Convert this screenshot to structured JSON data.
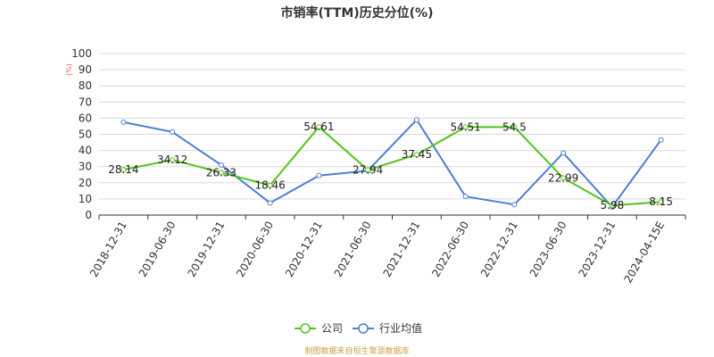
{
  "chart_data": {
    "type": "line",
    "title": "市销率(TTM)历史分位(%)",
    "ylabel": "(%)",
    "xlabel": "",
    "ylim": [
      0,
      100
    ],
    "yticks": [
      0,
      10,
      20,
      30,
      40,
      50,
      60,
      70,
      80,
      90,
      100
    ],
    "categories": [
      "2018-12-31",
      "2019-06-30",
      "2019-12-31",
      "2020-06-30",
      "2020-12-31",
      "2021-06-30",
      "2021-12-31",
      "2022-06-30",
      "2022-12-31",
      "2023-06-30",
      "2023-12-31",
      "2024-04-15E"
    ],
    "grid": true,
    "legend": "bottom-center",
    "series": [
      {
        "name": "公司",
        "color": "#52c41a",
        "values": [
          28.14,
          34.12,
          26.33,
          18.46,
          54.61,
          27.94,
          37.45,
          54.51,
          54.5,
          22.99,
          5.98,
          8.15
        ],
        "labels": [
          "28.14",
          "34.12",
          "26.33",
          "18.46",
          "54.61",
          "27.94",
          "37.45",
          "54.51",
          "54.5",
          "22.99",
          "5.98",
          "8.15"
        ]
      },
      {
        "name": "行业均值",
        "color": "#4a7fd4",
        "values": [
          57.5,
          51.5,
          31,
          7.5,
          24.5,
          27.5,
          59,
          11.5,
          6.5,
          38.5,
          5,
          46.5
        ]
      }
    ],
    "source": "制图数据来自恒生聚源数据库"
  }
}
